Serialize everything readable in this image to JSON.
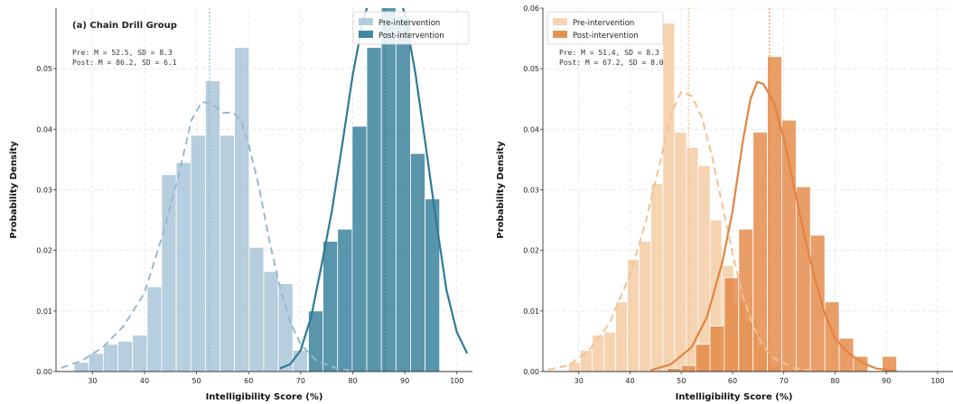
{
  "chart_data": [
    {
      "type": "histogram",
      "title": "(a) Chain Drill Group",
      "xlabel": "Intelligibility Score (%)",
      "ylabel": "Probability Density",
      "xlim": [
        23,
        103
      ],
      "ylim": [
        0,
        0.06
      ],
      "xticks": [
        30,
        40,
        50,
        60,
        70,
        80,
        90,
        100
      ],
      "yticks": [
        0.0,
        0.01,
        0.02,
        0.03,
        0.04,
        0.05
      ],
      "ytick_labels": [
        "0.00",
        "0.01",
        "0.02",
        "0.03",
        "0.04",
        "0.05"
      ],
      "annotation_lines": [
        "Pre:  M = 52.5, SD = 8.3",
        "Post: M = 86.2, SD = 6.1"
      ],
      "legend_position": "top-right",
      "grid": true,
      "series": [
        {
          "name": "Pre-intervention",
          "color": "#a9c6d8",
          "mean": 52.5,
          "bin_edges": [
            26.5,
            29.3,
            32.1,
            34.9,
            37.7,
            40.5,
            43.3,
            46.1,
            48.9,
            51.7,
            54.5,
            57.3,
            60.1,
            62.9,
            65.7,
            68.5,
            71.3
          ],
          "densities": [
            0.0015,
            0.003,
            0.0045,
            0.005,
            0.006,
            0.014,
            0.0325,
            0.0345,
            0.039,
            0.048,
            0.039,
            0.0535,
            0.0205,
            0.0165,
            0.0145,
            0.0035
          ],
          "kde": [
            [
              24,
              0.0006
            ],
            [
              28,
              0.0018
            ],
            [
              32,
              0.004
            ],
            [
              36,
              0.0075
            ],
            [
              40,
              0.013
            ],
            [
              44,
              0.024
            ],
            [
              47,
              0.034
            ],
            [
              49,
              0.0415
            ],
            [
              51,
              0.0445
            ],
            [
              53,
              0.0442
            ],
            [
              55,
              0.0427
            ],
            [
              57,
              0.0428
            ],
            [
              58.5,
              0.0415
            ],
            [
              60,
              0.0375
            ],
            [
              62,
              0.0305
            ],
            [
              64,
              0.0215
            ],
            [
              66,
              0.014
            ],
            [
              68,
              0.0082
            ],
            [
              70,
              0.0045
            ],
            [
              73,
              0.0018
            ],
            [
              77,
              0.0005
            ],
            [
              80,
              0.0001
            ]
          ]
        },
        {
          "name": "Post-intervention",
          "color": "#2f7a96",
          "mean": 86.2,
          "bin_edges": [
            71.5,
            74.3,
            77.1,
            79.9,
            82.7,
            85.5,
            88.3,
            91.1,
            93.9,
            96.7
          ],
          "densities": [
            0.01,
            0.0215,
            0.0235,
            0.0405,
            0.0535,
            0.074,
            0.0585,
            0.036,
            0.0285
          ],
          "kde": [
            [
              66,
              0.0005
            ],
            [
              68,
              0.0012
            ],
            [
              70,
              0.0035
            ],
            [
              72,
              0.009
            ],
            [
              74,
              0.0175
            ],
            [
              76,
              0.0265
            ],
            [
              78,
              0.0375
            ],
            [
              80,
              0.049
            ],
            [
              82,
              0.058
            ],
            [
              84,
              0.0635
            ],
            [
              86,
              0.0655
            ],
            [
              88,
              0.0645
            ],
            [
              90,
              0.059
            ],
            [
              92,
              0.0495
            ],
            [
              94,
              0.0375
            ],
            [
              96,
              0.025
            ],
            [
              98,
              0.0135
            ],
            [
              100,
              0.0065
            ],
            [
              102,
              0.003
            ]
          ]
        }
      ]
    },
    {
      "type": "histogram",
      "title": "",
      "xlabel": "Intelligibility Score (%)",
      "ylabel": "Probability Density",
      "xlim": [
        23,
        103
      ],
      "ylim": [
        0,
        0.06
      ],
      "xticks": [
        30,
        40,
        50,
        60,
        70,
        80,
        90,
        100
      ],
      "yticks": [
        0.0,
        0.01,
        0.02,
        0.03,
        0.04,
        0.05,
        0.06
      ],
      "ytick_labels": [
        "0.00",
        "0.01",
        "0.02",
        "0.03",
        "0.04",
        "0.05",
        "0.06"
      ],
      "annotation_lines": [
        "Pre:  M = 51.4, SD = 8.3",
        "Post: M = 67.2, SD = 8.0"
      ],
      "legend_position": "top-left",
      "grid": true,
      "series": [
        {
          "name": "Pre-intervention",
          "color": "#f5cba3",
          "mean": 51.4,
          "bin_edges": [
            28.0,
            30.3,
            32.6,
            34.9,
            37.2,
            39.5,
            41.8,
            44.1,
            46.4,
            48.7,
            51.0,
            53.3,
            55.6,
            57.9,
            60.2,
            62.5,
            64.8,
            67.1,
            69.4
          ],
          "densities": [
            0.0015,
            0.0035,
            0.006,
            0.0065,
            0.0115,
            0.0185,
            0.0215,
            0.031,
            0.0575,
            0.0395,
            0.037,
            0.034,
            0.025,
            0.0175,
            0.0115,
            0.0085,
            0.004,
            0.001
          ],
          "kde": [
            [
              24,
              0.0003
            ],
            [
              28,
              0.001
            ],
            [
              32,
              0.0035
            ],
            [
              36,
              0.008
            ],
            [
              40,
              0.016
            ],
            [
              43,
              0.0245
            ],
            [
              46,
              0.035
            ],
            [
              48,
              0.0425
            ],
            [
              50,
              0.0462
            ],
            [
              52,
              0.0455
            ],
            [
              54,
              0.042
            ],
            [
              56,
              0.0355
            ],
            [
              58,
              0.0275
            ],
            [
              60,
              0.0195
            ],
            [
              62,
              0.0125
            ],
            [
              64,
              0.0075
            ],
            [
              66,
              0.0042
            ],
            [
              68,
              0.0022
            ],
            [
              72,
              0.0006
            ],
            [
              76,
              0.0001
            ]
          ]
        },
        {
          "name": "Post-intervention",
          "color": "#e38441",
          "mean": 67.2,
          "bin_edges": [
            47.2,
            50.0,
            52.8,
            55.6,
            58.4,
            61.2,
            64.0,
            66.8,
            69.6,
            72.4,
            75.2,
            78.0,
            80.8,
            83.6,
            86.4
          ],
          "densities": [
            0.0005,
            0.001,
            0.0045,
            0.0075,
            0.0155,
            0.0235,
            0.0395,
            0.052,
            0.0415,
            0.0305,
            0.0225,
            0.0115,
            0.0055,
            0.0025
          ],
          "outlier_bin": {
            "left": 89.2,
            "right": 92.0,
            "density": 0.0025
          },
          "kde": [
            [
              44,
              0.0002
            ],
            [
              48,
              0.0012
            ],
            [
              52,
              0.004
            ],
            [
              55,
              0.009
            ],
            [
              58,
              0.018
            ],
            [
              60,
              0.0265
            ],
            [
              62,
              0.038
            ],
            [
              63.5,
              0.045
            ],
            [
              64.8,
              0.0478
            ],
            [
              66,
              0.0475
            ],
            [
              68,
              0.0445
            ],
            [
              70,
              0.0385
            ],
            [
              72,
              0.0305
            ],
            [
              74,
              0.0225
            ],
            [
              76,
              0.0155
            ],
            [
              78,
              0.0095
            ],
            [
              80,
              0.0055
            ],
            [
              82,
              0.0035
            ],
            [
              84,
              0.0022
            ],
            [
              86,
              0.0012
            ],
            [
              88,
              0.0005
            ],
            [
              92,
              0.0001
            ]
          ]
        }
      ]
    }
  ]
}
